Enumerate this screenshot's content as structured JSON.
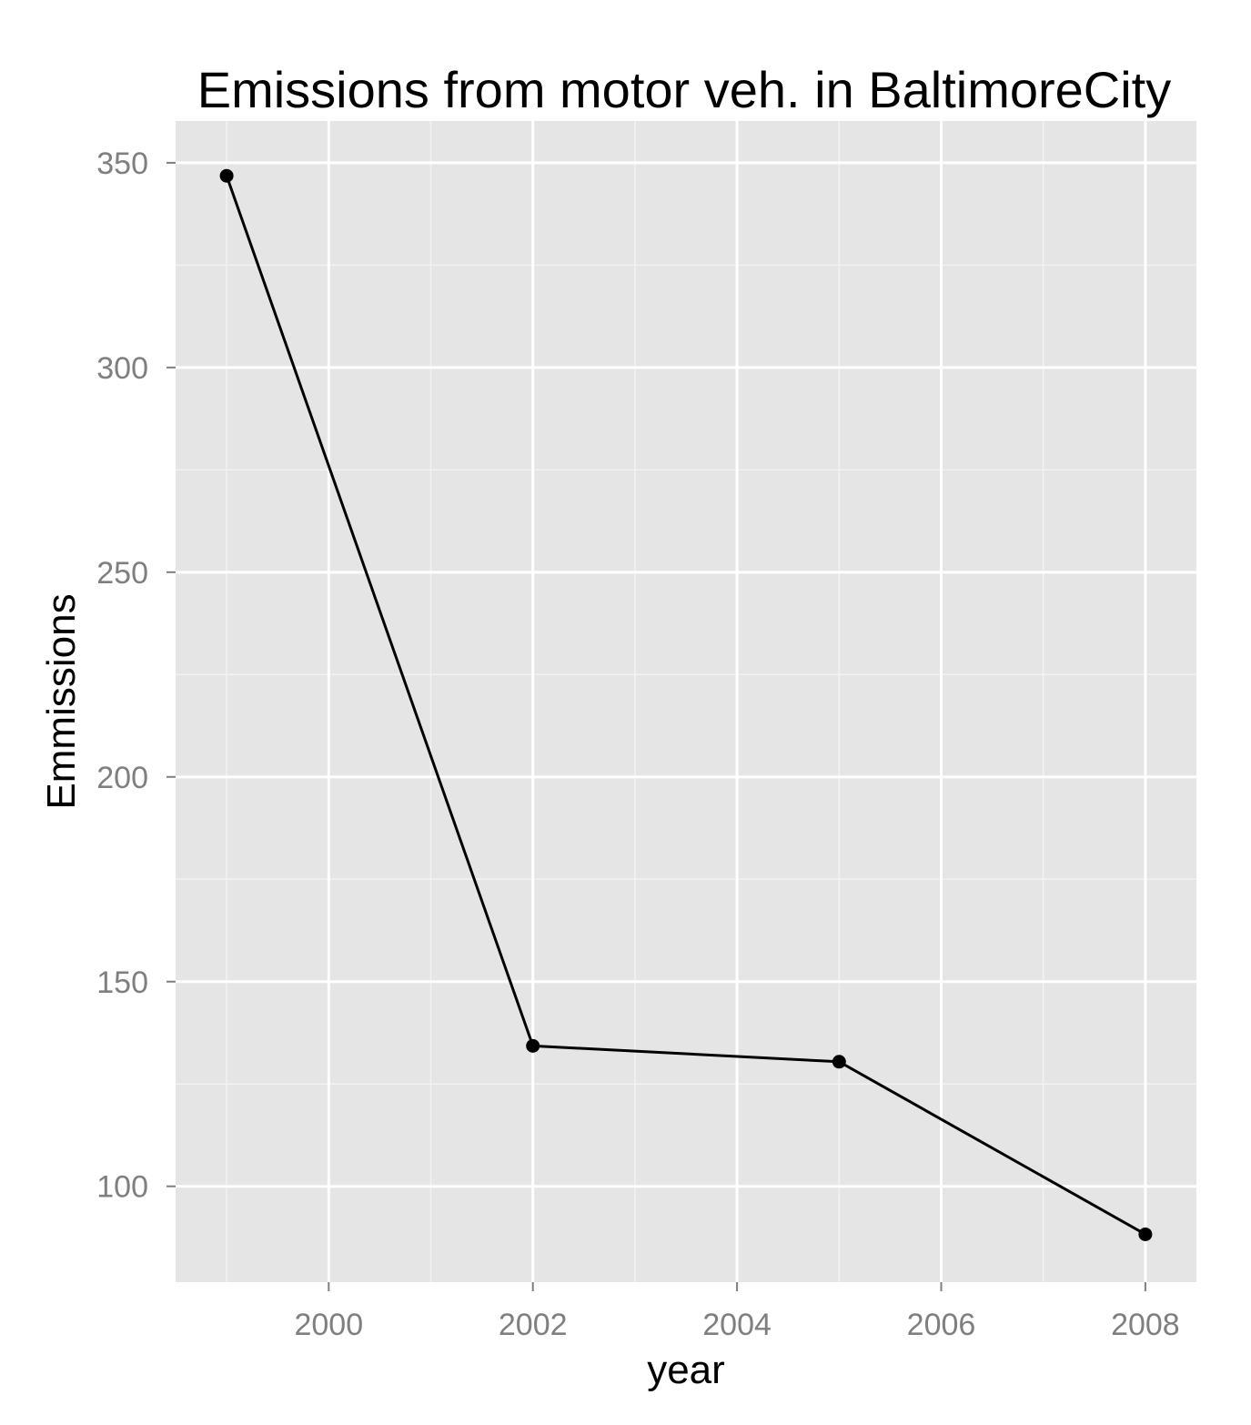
{
  "chart_data": {
    "type": "line",
    "title": "Emissions from motor veh. in BaltimoreCity",
    "xlabel": "year",
    "ylabel": "Emmissions",
    "x": [
      1999,
      2002,
      2005,
      2008
    ],
    "series": [
      {
        "values": [
          346.82,
          134.31,
          130.43,
          88.28
        ]
      }
    ],
    "xlim": [
      1998.5,
      2008.5
    ],
    "ylim": [
      76.6,
      360.2
    ],
    "xticks": [
      2000,
      2002,
      2004,
      2006,
      2008
    ],
    "xtick_labels": [
      "2000",
      "2002",
      "2004",
      "2006",
      "2008"
    ],
    "yticks": [
      100,
      150,
      200,
      250,
      300,
      350
    ],
    "ytick_labels": [
      "100",
      "150",
      "200",
      "250",
      "300",
      "350"
    ],
    "grid": true,
    "colors": {
      "panel_background": "#e5e5e5",
      "grid_major": "#ffffff",
      "grid_minor": "#f2f2f2",
      "line": "#000000",
      "point": "#000000",
      "tick_text": "#7f7f7f",
      "tick_mark": "#7f7f7f"
    }
  }
}
